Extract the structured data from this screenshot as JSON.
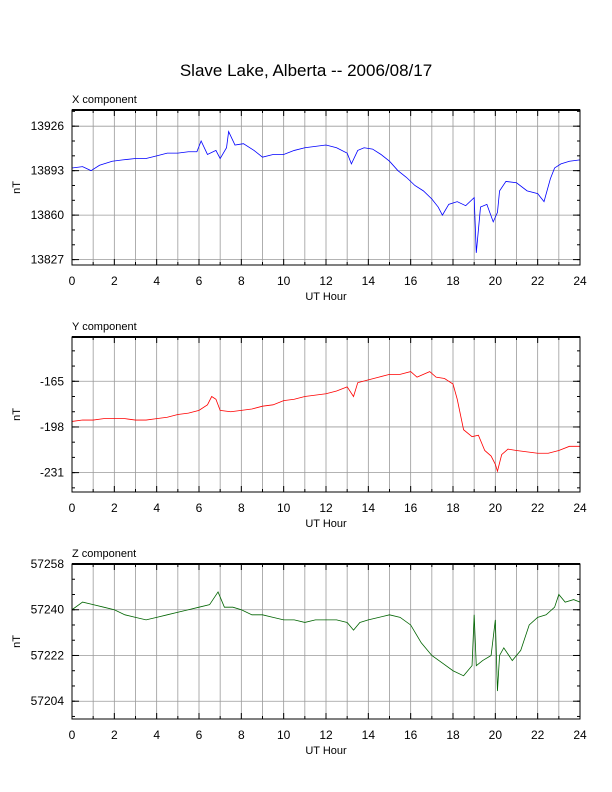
{
  "title": "Slave Lake, Alberta -- 2006/08/17",
  "chart_data": [
    {
      "type": "line",
      "panel_label": "X component",
      "color": "#0000ff",
      "xlabel": "UT Hour",
      "ylabel": "nT",
      "xlim": [
        0,
        24
      ],
      "ylim": [
        13823,
        13938
      ],
      "xticks": [
        0,
        2,
        4,
        6,
        8,
        10,
        12,
        14,
        16,
        18,
        20,
        22,
        24
      ],
      "yticks": [
        13926,
        13893,
        13860,
        13827
      ],
      "grid": true,
      "series": [
        {
          "x": [
            0,
            0.5,
            0.9,
            1.3,
            1.9,
            2.4,
            3.0,
            3.5,
            4.0,
            4.5,
            5.0,
            5.5,
            5.9,
            6.1,
            6.4,
            6.8,
            7.0,
            7.3,
            7.4,
            7.7,
            8.1,
            8.6,
            9.0,
            9.5,
            10.0,
            10.5,
            11.0,
            11.5,
            12.0,
            12.5,
            13.0,
            13.2,
            13.5,
            13.8,
            14.2,
            14.6,
            15.0,
            15.4,
            15.8,
            16.2,
            16.6,
            17.0,
            17.3,
            17.5,
            17.8,
            18.2,
            18.6,
            19.0,
            19.1,
            19.3,
            19.6,
            19.9,
            20.1,
            20.2,
            20.5,
            21.0,
            21.5,
            22.0,
            22.3,
            22.6,
            22.8,
            23.1,
            23.5,
            24.0
          ],
          "values": [
            13895,
            13896,
            13893,
            13897,
            13900,
            13901,
            13902,
            13902,
            13904,
            13906,
            13906,
            13907,
            13907,
            13915,
            13905,
            13908,
            13902,
            13910,
            13922,
            13912,
            13913,
            13908,
            13903,
            13905,
            13905,
            13908,
            13910,
            13911,
            13912,
            13910,
            13906,
            13898,
            13908,
            13910,
            13909,
            13905,
            13900,
            13893,
            13888,
            13882,
            13878,
            13872,
            13866,
            13860,
            13868,
            13870,
            13867,
            13873,
            13832,
            13866,
            13868,
            13855,
            13862,
            13878,
            13885,
            13884,
            13878,
            13876,
            13870,
            13887,
            13895,
            13898,
            13900,
            13901
          ]
        }
      ]
    },
    {
      "type": "line",
      "panel_label": "Y component",
      "color": "#ff0000",
      "xlabel": "UT Hour",
      "ylabel": "nT",
      "xlim": [
        0,
        24
      ],
      "ylim": [
        -245,
        -133
      ],
      "xticks": [
        0,
        2,
        4,
        6,
        8,
        10,
        12,
        14,
        16,
        18,
        20,
        22,
        24
      ],
      "yticks": [
        -165,
        -198,
        -231
      ],
      "grid": true,
      "series": [
        {
          "x": [
            0,
            0.5,
            1.0,
            1.5,
            2.0,
            2.5,
            3.0,
            3.5,
            4.0,
            4.5,
            5.0,
            5.5,
            6.0,
            6.4,
            6.6,
            6.8,
            7.0,
            7.5,
            8.0,
            8.5,
            9.0,
            9.5,
            10.0,
            10.5,
            11.0,
            11.5,
            12.0,
            12.5,
            13.0,
            13.3,
            13.5,
            14.0,
            14.5,
            15.0,
            15.5,
            16.0,
            16.3,
            16.6,
            16.9,
            17.2,
            17.6,
            18.0,
            18.2,
            18.5,
            18.9,
            19.2,
            19.5,
            19.8,
            20.0,
            20.1,
            20.3,
            20.6,
            21.0,
            21.5,
            22.0,
            22.5,
            23.0,
            23.5,
            24.0
          ],
          "values": [
            -194,
            -193,
            -193,
            -192,
            -192,
            -192,
            -193,
            -193,
            -192,
            -191,
            -189,
            -188,
            -186,
            -182,
            -176,
            -178,
            -186,
            -187,
            -186,
            -185,
            -183,
            -182,
            -179,
            -178,
            -176,
            -175,
            -174,
            -172,
            -169,
            -176,
            -166,
            -164,
            -162,
            -160,
            -160,
            -158,
            -162,
            -160,
            -158,
            -162,
            -163,
            -167,
            -178,
            -200,
            -205,
            -204,
            -215,
            -219,
            -225,
            -230,
            -218,
            -214,
            -215,
            -216,
            -217,
            -217,
            -215,
            -212,
            -212
          ]
        }
      ]
    },
    {
      "type": "line",
      "panel_label": "Z component",
      "color": "#006400",
      "xlabel": "UT Hour",
      "ylabel": "nT",
      "xlim": [
        0,
        24
      ],
      "ylim": [
        57197,
        57258
      ],
      "xticks": [
        0,
        2,
        4,
        6,
        8,
        10,
        12,
        14,
        16,
        18,
        20,
        22,
        24
      ],
      "yticks": [
        57258,
        57240,
        57222,
        57204
      ],
      "grid": true,
      "series": [
        {
          "x": [
            0,
            0.5,
            1.0,
            1.5,
            2.0,
            2.5,
            3.0,
            3.5,
            4.0,
            4.5,
            5.0,
            5.5,
            6.0,
            6.5,
            6.9,
            7.2,
            7.6,
            8.0,
            8.5,
            9.0,
            9.5,
            10.0,
            10.5,
            11.0,
            11.5,
            12.0,
            12.5,
            13.0,
            13.3,
            13.6,
            14.0,
            14.5,
            15.0,
            15.5,
            16.0,
            16.5,
            17.0,
            17.5,
            18.0,
            18.5,
            18.9,
            19.0,
            19.1,
            19.4,
            19.8,
            20.0,
            20.1,
            20.2,
            20.4,
            20.8,
            21.2,
            21.6,
            22.0,
            22.4,
            22.8,
            23.0,
            23.3,
            23.7,
            24.0
          ],
          "values": [
            57240,
            57243,
            57242,
            57241,
            57240,
            57238,
            57237,
            57236,
            57237,
            57238,
            57239,
            57240,
            57241,
            57242,
            57247,
            57241,
            57241,
            57240,
            57238,
            57238,
            57237,
            57236,
            57236,
            57235,
            57236,
            57236,
            57236,
            57235,
            57232,
            57235,
            57236,
            57237,
            57238,
            57237,
            57234,
            57227,
            57222,
            57219,
            57216,
            57214,
            57218,
            57238,
            57218,
            57220,
            57222,
            57236,
            57208,
            57222,
            57225,
            57220,
            57224,
            57234,
            57237,
            57238,
            57241,
            57246,
            57243,
            57244,
            57243
          ]
        }
      ]
    }
  ]
}
